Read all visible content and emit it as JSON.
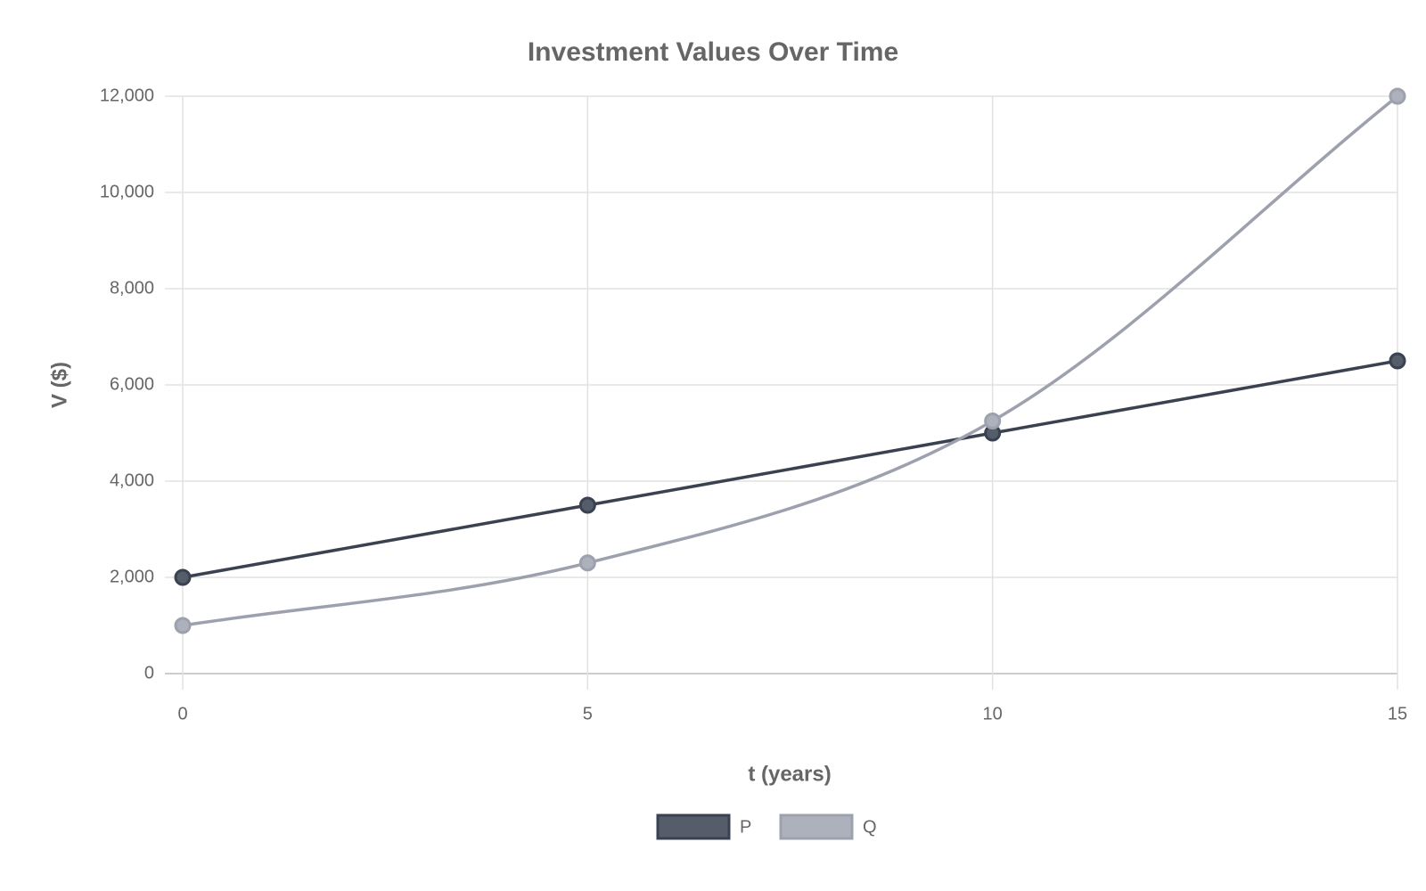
{
  "chart_data": {
    "type": "line",
    "title": "Investment Values Over Time",
    "x_label": "t (years)",
    "y_label": "V ($)",
    "x": [
      0,
      5,
      10,
      15
    ],
    "series": [
      {
        "name": "P",
        "color": "#3a4150",
        "fill": "#555d6b",
        "values": [
          2000,
          3500,
          5000,
          6500
        ]
      },
      {
        "name": "Q",
        "color": "#9ca1ad",
        "fill": "#adb1bc",
        "values": [
          1000,
          2300,
          5250,
          12000
        ]
      }
    ],
    "xlim": [
      0,
      15
    ],
    "xticks": [
      0,
      5,
      10,
      15
    ],
    "ylim": [
      0,
      12000
    ],
    "yticks": [
      0,
      {
        "value": 2000,
        "label": "2,000"
      },
      {
        "value": 4000,
        "label": "4,000"
      },
      {
        "value": 6000,
        "label": "6,000"
      },
      {
        "value": 8000,
        "label": "8,000"
      },
      {
        "value": 10000,
        "label": "10,000"
      },
      {
        "value": 12000,
        "label": "12,000"
      }
    ],
    "grid": true,
    "smooth": true,
    "legend": "bottom"
  }
}
